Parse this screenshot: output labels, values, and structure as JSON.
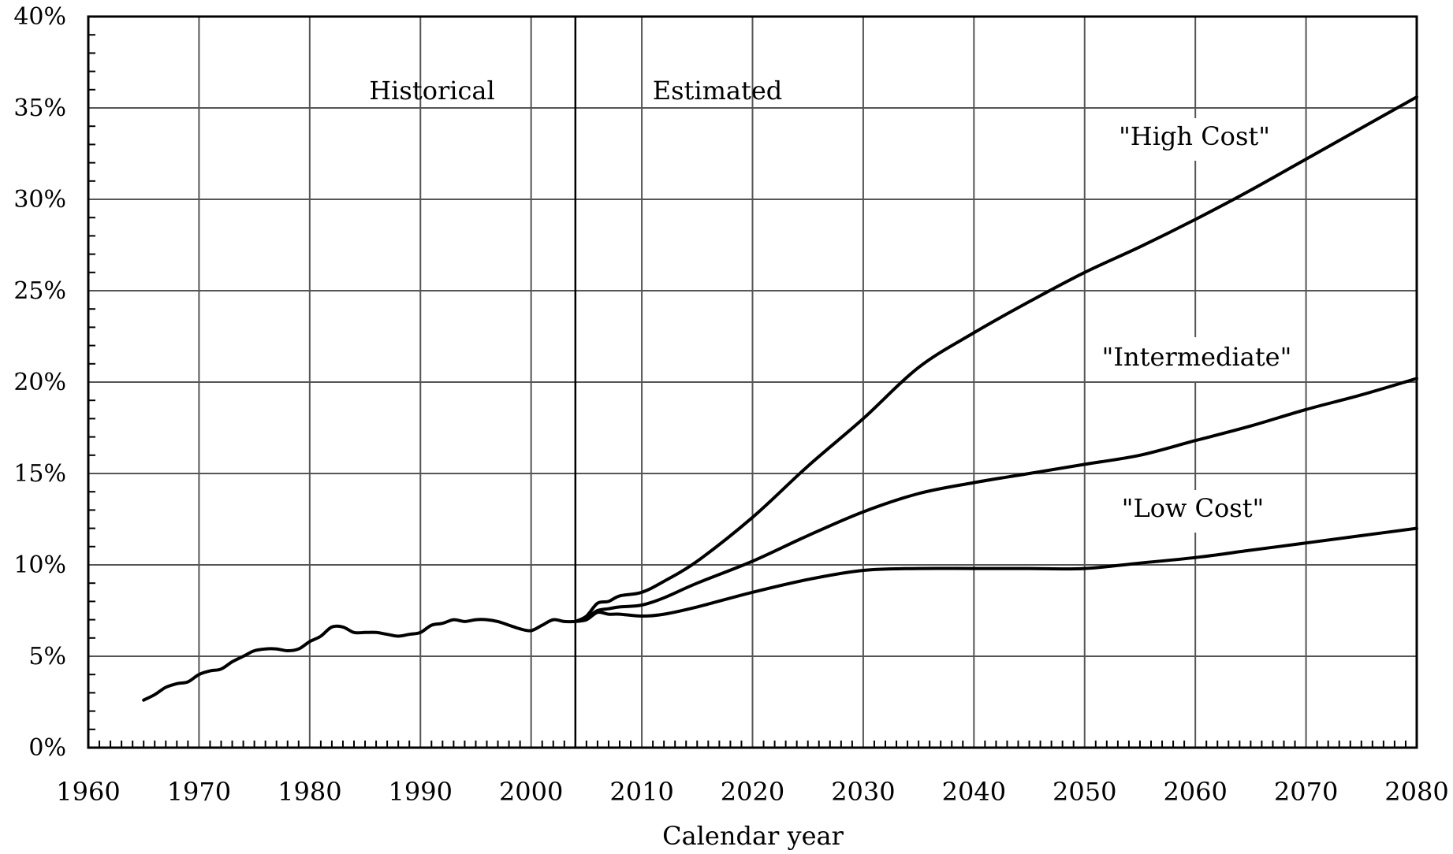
{
  "chart_data": {
    "type": "line",
    "xlabel": "Calendar year",
    "ylabel": "",
    "xlim": [
      1960,
      2080
    ],
    "ylim": [
      0,
      40
    ],
    "x_ticks": [
      "1960",
      "1970",
      "1980",
      "1990",
      "2000",
      "2010",
      "2020",
      "2030",
      "2040",
      "2050",
      "2060",
      "2070",
      "2080"
    ],
    "y_ticks": [
      "0%",
      "5%",
      "10%",
      "15%",
      "20%",
      "25%",
      "30%",
      "35%",
      "40%"
    ],
    "grid": true,
    "divider_year": 2004,
    "region_labels": [
      "Historical",
      "Estimated"
    ],
    "series_labels": [
      "\"High Cost\"",
      "\"Intermediate\"",
      "\"Low Cost\""
    ],
    "series": [
      {
        "name": "Historical",
        "x": [
          1965,
          1966,
          1967,
          1968,
          1969,
          1970,
          1971,
          1972,
          1973,
          1974,
          1975,
          1976,
          1977,
          1978,
          1979,
          1980,
          1981,
          1982,
          1983,
          1984,
          1985,
          1986,
          1987,
          1988,
          1989,
          1990,
          1991,
          1992,
          1993,
          1994,
          1995,
          1996,
          1997,
          1998,
          1999,
          2000,
          2001,
          2002,
          2003,
          2004
        ],
        "y": [
          2.6,
          2.9,
          3.3,
          3.5,
          3.6,
          4.0,
          4.2,
          4.3,
          4.7,
          5.0,
          5.3,
          5.4,
          5.4,
          5.3,
          5.4,
          5.8,
          6.1,
          6.6,
          6.6,
          6.3,
          6.3,
          6.3,
          6.2,
          6.1,
          6.2,
          6.3,
          6.7,
          6.8,
          7.0,
          6.9,
          7.0,
          7.0,
          6.9,
          6.7,
          6.5,
          6.4,
          6.7,
          7.0,
          6.9,
          6.9
        ]
      },
      {
        "name": "\"High Cost\"",
        "x": [
          2004,
          2005,
          2006,
          2007,
          2008,
          2010,
          2012,
          2015,
          2020,
          2025,
          2030,
          2035,
          2040,
          2045,
          2050,
          2055,
          2060,
          2065,
          2070,
          2075,
          2080
        ],
        "y": [
          6.9,
          7.2,
          7.9,
          8.0,
          8.3,
          8.5,
          9.1,
          10.2,
          12.6,
          15.4,
          18.0,
          20.8,
          22.7,
          24.4,
          26.0,
          27.4,
          28.9,
          30.5,
          32.2,
          33.9,
          35.6
        ]
      },
      {
        "name": "\"Intermediate\"",
        "x": [
          2004,
          2005,
          2006,
          2007,
          2008,
          2010,
          2012,
          2015,
          2020,
          2025,
          2030,
          2035,
          2040,
          2045,
          2050,
          2055,
          2060,
          2065,
          2070,
          2075,
          2080
        ],
        "y": [
          6.9,
          7.1,
          7.5,
          7.6,
          7.7,
          7.8,
          8.2,
          9.0,
          10.2,
          11.6,
          12.9,
          13.9,
          14.5,
          15.0,
          15.5,
          16.0,
          16.8,
          17.6,
          18.5,
          19.3,
          20.2
        ]
      },
      {
        "name": "\"Low Cost\"",
        "x": [
          2004,
          2005,
          2006,
          2007,
          2008,
          2010,
          2012,
          2015,
          2020,
          2025,
          2030,
          2035,
          2040,
          2045,
          2050,
          2055,
          2060,
          2065,
          2070,
          2075,
          2080
        ],
        "y": [
          6.9,
          7.0,
          7.4,
          7.3,
          7.3,
          7.2,
          7.3,
          7.7,
          8.5,
          9.2,
          9.7,
          9.8,
          9.8,
          9.8,
          9.8,
          10.1,
          10.4,
          10.8,
          11.2,
          11.6,
          12.0
        ]
      }
    ]
  }
}
